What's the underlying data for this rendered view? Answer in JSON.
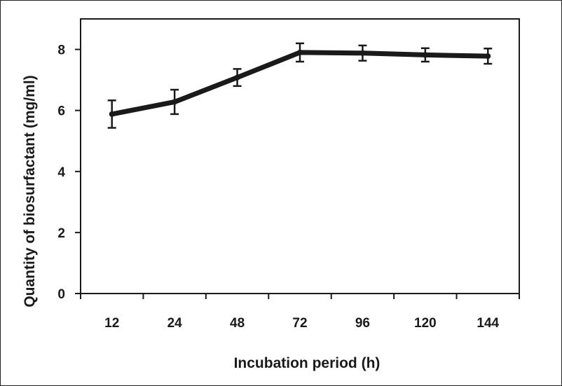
{
  "chart_data": {
    "type": "line",
    "title": "",
    "xlabel": "Incubation period (h)",
    "ylabel": "Quantity of biosurfactant (mg/ml)",
    "categories": [
      "12",
      "24",
      "48",
      "72",
      "96",
      "120",
      "144"
    ],
    "series": [
      {
        "values": [
          5.88,
          6.28,
          7.08,
          7.9,
          7.88,
          7.82,
          7.78
        ],
        "error": [
          0.45,
          0.4,
          0.28,
          0.3,
          0.25,
          0.22,
          0.25
        ]
      }
    ],
    "ylim": [
      0,
      9
    ],
    "yticks": [
      "0",
      "2",
      "4",
      "6",
      "8"
    ],
    "grid": false,
    "legend": "none",
    "line_color": "#1a1a1a"
  }
}
